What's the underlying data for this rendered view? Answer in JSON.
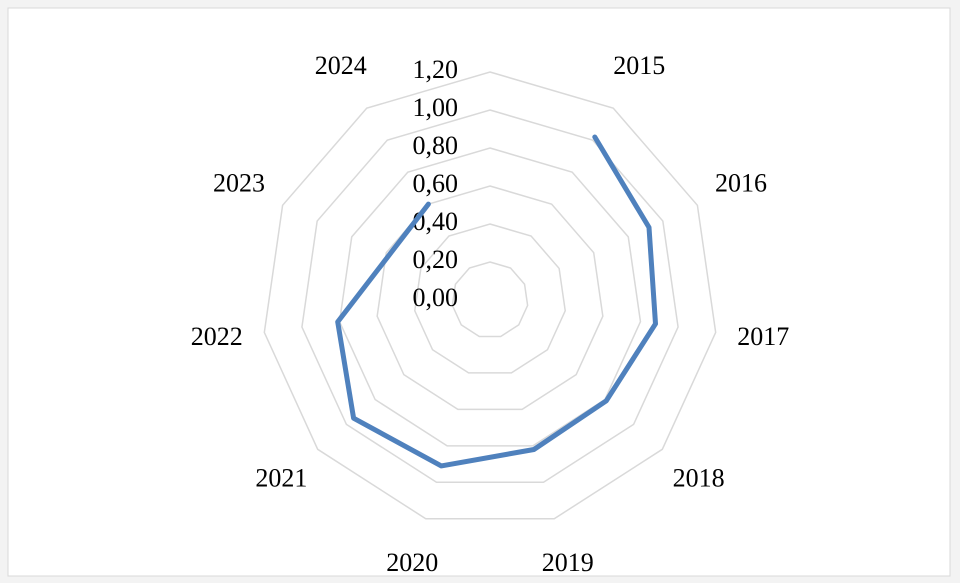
{
  "chart_data": {
    "type": "radar",
    "categories": [
      null,
      "2015",
      "2016",
      "2017",
      "2018",
      "2019",
      "2020",
      "2021",
      "2022",
      "2023",
      "2024"
    ],
    "series": [
      {
        "color": "#4f81bd",
        "values": [
          null,
          1.02,
          0.92,
          0.88,
          0.81,
          0.82,
          0.91,
          0.95,
          0.81,
          0.58,
          0.6
        ]
      }
    ],
    "ylim": [
      0,
      1.2
    ],
    "yticks": [
      {
        "value": 0,
        "label": "0,00"
      },
      {
        "value": 0.2,
        "label": "0,20"
      },
      {
        "value": 0.4,
        "label": "0,40"
      },
      {
        "value": 0.6,
        "label": "0,60"
      },
      {
        "value": 0.8,
        "label": "0,80"
      },
      {
        "value": 1.0,
        "label": "1,00"
      },
      {
        "value": 1.2,
        "label": "1,20"
      }
    ],
    "grid": true
  }
}
